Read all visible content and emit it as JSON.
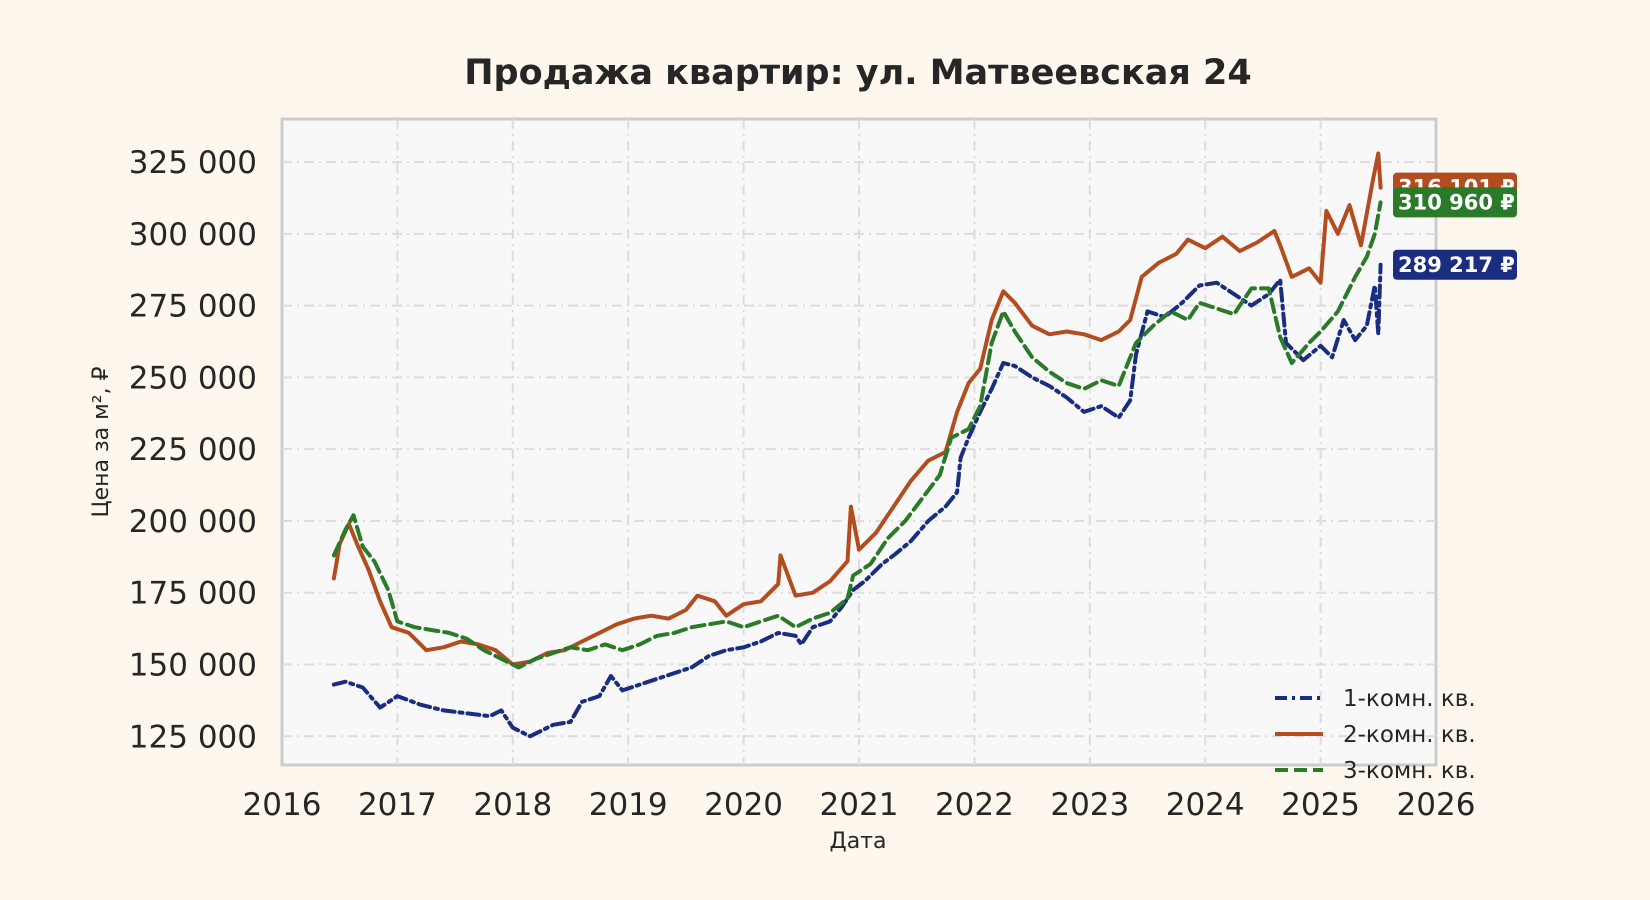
{
  "chart_data": {
    "type": "line",
    "title": "Продажа квартир: ул. Матвеевская 24",
    "xlabel": "Дата",
    "ylabel": "Цена за м², ₽",
    "xlim": [
      2016,
      2026
    ],
    "ylim": [
      115000,
      340000
    ],
    "x_ticks": [
      "2016",
      "2017",
      "2018",
      "2019",
      "2020",
      "2021",
      "2022",
      "2023",
      "2024",
      "2025",
      "2026"
    ],
    "y_ticks": [
      "125 000",
      "150 000",
      "175 000",
      "200 000",
      "225 000",
      "250 000",
      "275 000",
      "300 000",
      "325 000"
    ],
    "grid": true,
    "legend_position": "lower-right",
    "series": [
      {
        "name": "1-комн. кв.",
        "color": "#1a2d80",
        "style": "dashdot",
        "end_label": "289 217 ₽",
        "points": [
          [
            2016.45,
            143000
          ],
          [
            2016.55,
            144000
          ],
          [
            2016.7,
            142000
          ],
          [
            2016.85,
            135000
          ],
          [
            2017.0,
            139000
          ],
          [
            2017.2,
            136000
          ],
          [
            2017.4,
            134000
          ],
          [
            2017.6,
            133000
          ],
          [
            2017.8,
            132000
          ],
          [
            2017.9,
            134000
          ],
          [
            2018.0,
            128000
          ],
          [
            2018.15,
            125000
          ],
          [
            2018.35,
            129000
          ],
          [
            2018.5,
            130000
          ],
          [
            2018.6,
            137000
          ],
          [
            2018.75,
            139000
          ],
          [
            2018.85,
            146000
          ],
          [
            2018.95,
            141000
          ],
          [
            2019.1,
            143000
          ],
          [
            2019.25,
            145000
          ],
          [
            2019.4,
            147000
          ],
          [
            2019.55,
            149000
          ],
          [
            2019.7,
            153000
          ],
          [
            2019.85,
            155000
          ],
          [
            2020.0,
            156000
          ],
          [
            2020.15,
            158000
          ],
          [
            2020.3,
            161000
          ],
          [
            2020.45,
            160000
          ],
          [
            2020.5,
            157000
          ],
          [
            2020.6,
            163000
          ],
          [
            2020.75,
            165000
          ],
          [
            2020.85,
            170000
          ],
          [
            2020.95,
            176000
          ],
          [
            2021.05,
            179000
          ],
          [
            2021.2,
            185000
          ],
          [
            2021.3,
            188000
          ],
          [
            2021.45,
            193000
          ],
          [
            2021.6,
            200000
          ],
          [
            2021.75,
            205000
          ],
          [
            2021.85,
            210000
          ],
          [
            2021.88,
            222000
          ],
          [
            2021.95,
            229000
          ],
          [
            2022.05,
            238000
          ],
          [
            2022.15,
            246000
          ],
          [
            2022.25,
            255000
          ],
          [
            2022.35,
            254000
          ],
          [
            2022.5,
            250000
          ],
          [
            2022.65,
            247000
          ],
          [
            2022.8,
            243000
          ],
          [
            2022.95,
            238000
          ],
          [
            2023.1,
            240000
          ],
          [
            2023.25,
            236000
          ],
          [
            2023.35,
            242000
          ],
          [
            2023.4,
            258000
          ],
          [
            2023.5,
            273000
          ],
          [
            2023.65,
            271000
          ],
          [
            2023.8,
            276000
          ],
          [
            2023.95,
            282000
          ],
          [
            2024.1,
            283000
          ],
          [
            2024.25,
            279000
          ],
          [
            2024.4,
            275000
          ],
          [
            2024.55,
            279000
          ],
          [
            2024.65,
            284000
          ],
          [
            2024.7,
            262000
          ],
          [
            2024.85,
            256000
          ],
          [
            2025.0,
            261000
          ],
          [
            2025.1,
            257000
          ],
          [
            2025.2,
            270000
          ],
          [
            2025.3,
            263000
          ],
          [
            2025.4,
            268000
          ],
          [
            2025.47,
            282000
          ],
          [
            2025.5,
            265000
          ],
          [
            2025.52,
            289217
          ]
        ]
      },
      {
        "name": "2-комн. кв.",
        "color": "#b34d1f",
        "style": "solid",
        "end_label": "316 101 ₽",
        "points": [
          [
            2016.45,
            180000
          ],
          [
            2016.5,
            192000
          ],
          [
            2016.58,
            199000
          ],
          [
            2016.65,
            192000
          ],
          [
            2016.75,
            183000
          ],
          [
            2016.85,
            172000
          ],
          [
            2016.95,
            163000
          ],
          [
            2017.1,
            161000
          ],
          [
            2017.25,
            155000
          ],
          [
            2017.4,
            156000
          ],
          [
            2017.55,
            158000
          ],
          [
            2017.7,
            157000
          ],
          [
            2017.85,
            155000
          ],
          [
            2018.0,
            150000
          ],
          [
            2018.15,
            151000
          ],
          [
            2018.3,
            154000
          ],
          [
            2018.45,
            155000
          ],
          [
            2018.6,
            158000
          ],
          [
            2018.75,
            161000
          ],
          [
            2018.9,
            164000
          ],
          [
            2019.05,
            166000
          ],
          [
            2019.2,
            167000
          ],
          [
            2019.35,
            166000
          ],
          [
            2019.5,
            169000
          ],
          [
            2019.6,
            174000
          ],
          [
            2019.75,
            172000
          ],
          [
            2019.85,
            167000
          ],
          [
            2020.0,
            171000
          ],
          [
            2020.15,
            172000
          ],
          [
            2020.3,
            178000
          ],
          [
            2020.32,
            188000
          ],
          [
            2020.45,
            174000
          ],
          [
            2020.6,
            175000
          ],
          [
            2020.75,
            179000
          ],
          [
            2020.9,
            186000
          ],
          [
            2020.93,
            205000
          ],
          [
            2021.0,
            190000
          ],
          [
            2021.15,
            196000
          ],
          [
            2021.3,
            205000
          ],
          [
            2021.45,
            214000
          ],
          [
            2021.6,
            221000
          ],
          [
            2021.75,
            224000
          ],
          [
            2021.85,
            238000
          ],
          [
            2021.95,
            248000
          ],
          [
            2022.05,
            253000
          ],
          [
            2022.15,
            270000
          ],
          [
            2022.25,
            280000
          ],
          [
            2022.35,
            276000
          ],
          [
            2022.5,
            268000
          ],
          [
            2022.65,
            265000
          ],
          [
            2022.8,
            266000
          ],
          [
            2022.95,
            265000
          ],
          [
            2023.1,
            263000
          ],
          [
            2023.25,
            266000
          ],
          [
            2023.35,
            270000
          ],
          [
            2023.45,
            285000
          ],
          [
            2023.6,
            290000
          ],
          [
            2023.75,
            293000
          ],
          [
            2023.85,
            298000
          ],
          [
            2024.0,
            295000
          ],
          [
            2024.15,
            299000
          ],
          [
            2024.3,
            294000
          ],
          [
            2024.45,
            297000
          ],
          [
            2024.6,
            301000
          ],
          [
            2024.65,
            296000
          ],
          [
            2024.75,
            285000
          ],
          [
            2024.9,
            288000
          ],
          [
            2025.0,
            283000
          ],
          [
            2025.05,
            308000
          ],
          [
            2025.15,
            300000
          ],
          [
            2025.25,
            310000
          ],
          [
            2025.35,
            296000
          ],
          [
            2025.45,
            318000
          ],
          [
            2025.5,
            328000
          ],
          [
            2025.52,
            316101
          ]
        ]
      },
      {
        "name": "3-комн. кв.",
        "color": "#2a7a2a",
        "style": "dashed",
        "end_label": "310 960 ₽",
        "points": [
          [
            2016.45,
            188000
          ],
          [
            2016.55,
            197000
          ],
          [
            2016.62,
            202000
          ],
          [
            2016.7,
            191000
          ],
          [
            2016.8,
            186000
          ],
          [
            2016.92,
            176000
          ],
          [
            2017.0,
            165000
          ],
          [
            2017.15,
            163000
          ],
          [
            2017.3,
            162000
          ],
          [
            2017.45,
            161000
          ],
          [
            2017.6,
            159000
          ],
          [
            2017.75,
            155000
          ],
          [
            2017.9,
            152000
          ],
          [
            2018.05,
            149000
          ],
          [
            2018.2,
            152000
          ],
          [
            2018.35,
            154000
          ],
          [
            2018.5,
            156000
          ],
          [
            2018.65,
            155000
          ],
          [
            2018.8,
            157000
          ],
          [
            2018.95,
            155000
          ],
          [
            2019.1,
            157000
          ],
          [
            2019.25,
            160000
          ],
          [
            2019.4,
            161000
          ],
          [
            2019.55,
            163000
          ],
          [
            2019.7,
            164000
          ],
          [
            2019.85,
            165000
          ],
          [
            2020.0,
            163000
          ],
          [
            2020.15,
            165000
          ],
          [
            2020.3,
            167000
          ],
          [
            2020.45,
            163000
          ],
          [
            2020.6,
            166000
          ],
          [
            2020.75,
            168000
          ],
          [
            2020.9,
            173000
          ],
          [
            2020.95,
            181000
          ],
          [
            2021.1,
            185000
          ],
          [
            2021.25,
            194000
          ],
          [
            2021.4,
            200000
          ],
          [
            2021.55,
            208000
          ],
          [
            2021.7,
            216000
          ],
          [
            2021.8,
            229000
          ],
          [
            2021.95,
            232000
          ],
          [
            2022.05,
            240000
          ],
          [
            2022.15,
            262000
          ],
          [
            2022.25,
            273000
          ],
          [
            2022.35,
            266000
          ],
          [
            2022.5,
            257000
          ],
          [
            2022.65,
            252000
          ],
          [
            2022.8,
            248000
          ],
          [
            2022.95,
            246000
          ],
          [
            2023.1,
            249000
          ],
          [
            2023.25,
            247000
          ],
          [
            2023.4,
            262000
          ],
          [
            2023.55,
            268000
          ],
          [
            2023.7,
            273000
          ],
          [
            2023.85,
            270000
          ],
          [
            2023.95,
            276000
          ],
          [
            2024.1,
            274000
          ],
          [
            2024.25,
            272000
          ],
          [
            2024.4,
            281000
          ],
          [
            2024.55,
            281000
          ],
          [
            2024.65,
            264000
          ],
          [
            2024.75,
            255000
          ],
          [
            2024.9,
            262000
          ],
          [
            2025.0,
            266000
          ],
          [
            2025.15,
            273000
          ],
          [
            2025.3,
            285000
          ],
          [
            2025.4,
            292000
          ],
          [
            2025.47,
            300000
          ],
          [
            2025.52,
            310960
          ]
        ]
      }
    ]
  }
}
